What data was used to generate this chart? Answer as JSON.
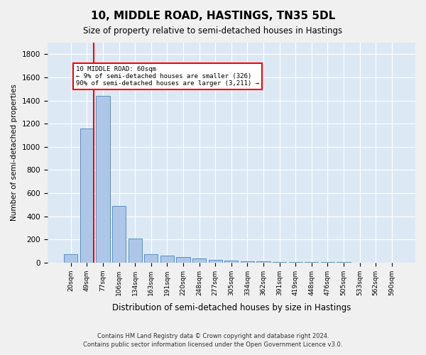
{
  "title": "10, MIDDLE ROAD, HASTINGS, TN35 5DL",
  "subtitle": "Size of property relative to semi-detached houses in Hastings",
  "xlabel": "Distribution of semi-detached houses by size in Hastings",
  "ylabel": "Number of semi-detached properties",
  "categories": [
    "20sqm",
    "49sqm",
    "77sqm",
    "106sqm",
    "134sqm",
    "163sqm",
    "191sqm",
    "220sqm",
    "248sqm",
    "277sqm",
    "305sqm",
    "334sqm",
    "362sqm",
    "391sqm",
    "419sqm",
    "448sqm",
    "476sqm",
    "505sqm",
    "533sqm",
    "562sqm",
    "590sqm"
  ],
  "values": [
    75,
    1160,
    1440,
    490,
    210,
    70,
    60,
    45,
    35,
    22,
    15,
    10,
    8,
    5,
    4,
    3,
    2,
    2,
    1,
    1,
    1
  ],
  "bar_color": "#aec6e8",
  "bar_edge_color": "#5a8fc0",
  "property_size": 60,
  "property_bin_index": 1,
  "red_line_x": 1,
  "annotation_text_line1": "10 MIDDLE ROAD: 60sqm",
  "annotation_text_line2": "← 9% of semi-detached houses are smaller (326)",
  "annotation_text_line3": "90% of semi-detached houses are larger (3,211) →",
  "ylim": [
    0,
    1900
  ],
  "yticks": [
    0,
    200,
    400,
    600,
    800,
    1000,
    1200,
    1400,
    1600,
    1800
  ],
  "footnote1": "Contains HM Land Registry data © Crown copyright and database right 2024.",
  "footnote2": "Contains public sector information licensed under the Open Government Licence v3.0.",
  "background_color": "#dce9f5",
  "plot_bg_color": "#dce9f5"
}
